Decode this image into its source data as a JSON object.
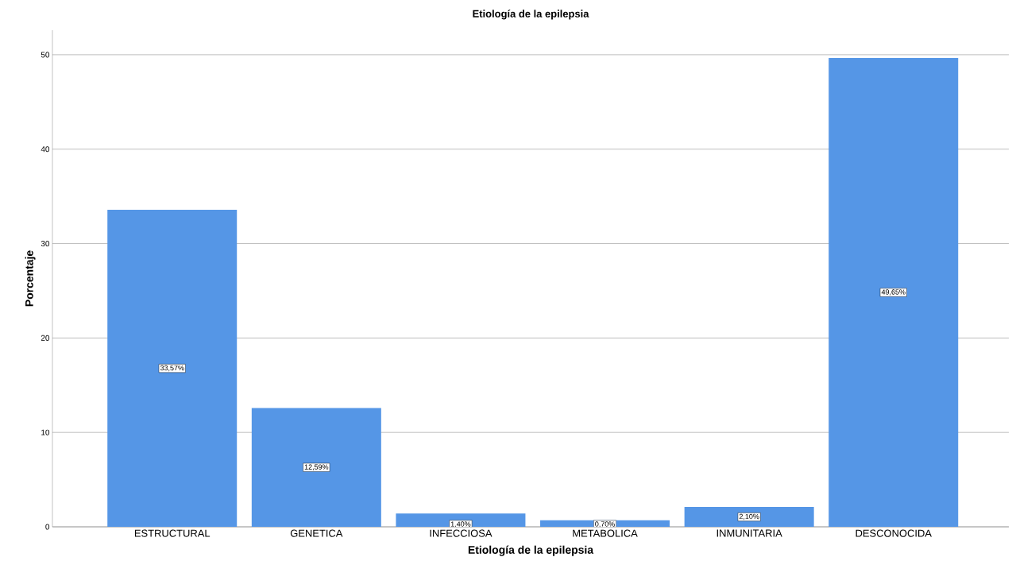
{
  "chart_data": {
    "type": "bar",
    "title": "Etiología de la epilepsia",
    "xlabel": "Etiología de la epilepsia",
    "ylabel": "Porcentaje",
    "categories": [
      "ESTRUCTURAL",
      "GENETICA",
      "INFECCIOSA",
      "METABOLICA",
      "INMUNITARIA",
      "DESCONOCIDA"
    ],
    "values": [
      33.57,
      12.59,
      1.4,
      0.7,
      2.1,
      49.65
    ],
    "value_labels": [
      "33,57%",
      "12,59%",
      "1,40%",
      "0,70%",
      "2,10%",
      "49,65%"
    ],
    "color": "#5596e6",
    "ylim": [
      0,
      52.6
    ],
    "yticks": [
      0,
      10,
      20,
      30,
      40,
      50
    ],
    "grid": "y"
  }
}
